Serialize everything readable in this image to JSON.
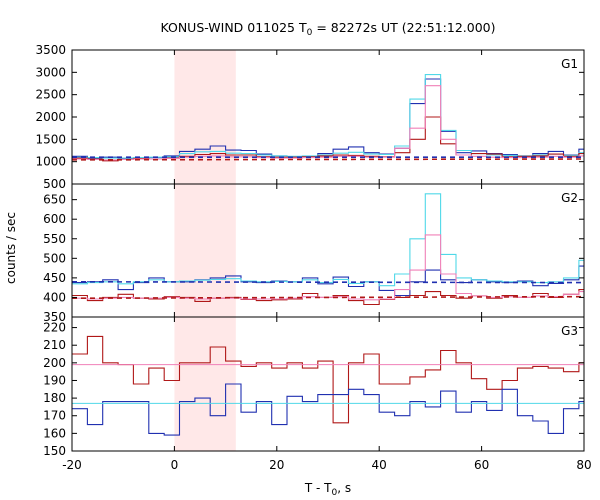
{
  "chart_data": {
    "type": "line",
    "title": "KONUS-WIND 011025 T",
    "title_sub": "0",
    "title_rest": " = 82272s UT (22:51:12.000)",
    "xlabel": "T - T",
    "xlabel_sub": "0",
    "xlabel_rest": ", s",
    "ylabel": "counts / sec",
    "xlim": [
      -20,
      80
    ],
    "x_ticks": [
      "-20",
      "0",
      "20",
      "40",
      "60",
      "80"
    ],
    "x_tick_values": [
      -20,
      0,
      20,
      40,
      60,
      80
    ],
    "shaded_interval": [
      0,
      12
    ],
    "shade_color": "#ffe8e8",
    "colors": {
      "blue": "#2030b0",
      "cyan": "#50d8e8",
      "red": "#b01818",
      "pink": "#f080b8"
    },
    "panels": [
      {
        "label": "G1",
        "ylim": [
          500,
          3500
        ],
        "y_ticks": [
          3500,
          3000,
          2500,
          2000,
          1500,
          1000,
          500
        ],
        "y_tick_labels": [
          "3500",
          "3000",
          "2500",
          "2000",
          "1500",
          "1000",
          "500"
        ],
        "series": [
          {
            "color": "blue",
            "kind": "step",
            "x": [
              -20,
              -17,
              -14,
              -11,
              -8,
              -5,
              -2,
              1,
              4,
              7,
              10,
              13,
              16,
              19,
              22,
              25,
              28,
              31,
              34,
              37,
              40,
              43,
              46,
              49,
              52,
              55,
              58,
              61,
              64,
              67,
              70,
              73,
              76,
              79
            ],
            "values": [
              1120,
              1080,
              1100,
              1060,
              1080,
              1090,
              1130,
              1230,
              1280,
              1350,
              1260,
              1250,
              1170,
              1130,
              1110,
              1120,
              1180,
              1280,
              1330,
              1200,
              1170,
              1300,
              2300,
              2850,
              1680,
              1200,
              1240,
              1180,
              1160,
              1130,
              1180,
              1230,
              1150,
              1280
            ]
          },
          {
            "color": "cyan",
            "kind": "step",
            "x": [
              -20,
              -17,
              -14,
              -11,
              -8,
              -5,
              -2,
              1,
              4,
              7,
              10,
              13,
              16,
              19,
              22,
              25,
              28,
              31,
              34,
              37,
              40,
              43,
              46,
              49,
              52,
              55,
              58,
              61,
              64,
              67,
              70,
              73,
              76,
              79
            ],
            "values": [
              1100,
              1090,
              1080,
              1080,
              1090,
              1100,
              1110,
              1180,
              1220,
              1230,
              1190,
              1180,
              1150,
              1130,
              1120,
              1130,
              1150,
              1190,
              1210,
              1170,
              1160,
              1350,
              2400,
              2950,
              1700,
              1250,
              1180,
              1150,
              1140,
              1130,
              1150,
              1170,
              1140,
              1200
            ]
          },
          {
            "color": "red",
            "kind": "step",
            "x": [
              -20,
              -17,
              -14,
              -11,
              -8,
              -5,
              -2,
              1,
              4,
              7,
              10,
              13,
              16,
              19,
              22,
              25,
              28,
              31,
              34,
              37,
              40,
              43,
              46,
              49,
              52,
              55,
              58,
              61,
              64,
              67,
              70,
              73,
              76,
              79
            ],
            "values": [
              1080,
              1060,
              1020,
              1050,
              1070,
              1060,
              1080,
              1120,
              1160,
              1180,
              1150,
              1150,
              1110,
              1100,
              1100,
              1110,
              1130,
              1150,
              1140,
              1120,
              1110,
              1200,
              1500,
              2000,
              1400,
              1150,
              1180,
              1170,
              1110,
              1120,
              1130,
              1170,
              1120,
              1180
            ]
          },
          {
            "color": "pink",
            "kind": "step",
            "x": [
              -20,
              -17,
              -14,
              -11,
              -8,
              -5,
              -2,
              1,
              4,
              7,
              10,
              13,
              16,
              19,
              22,
              25,
              28,
              31,
              34,
              37,
              40,
              43,
              46,
              49,
              52,
              55,
              58,
              61,
              64,
              67,
              70,
              73,
              76,
              79
            ],
            "values": [
              1060,
              1050,
              1040,
              1050,
              1060,
              1060,
              1070,
              1100,
              1120,
              1130,
              1110,
              1110,
              1090,
              1080,
              1080,
              1090,
              1100,
              1120,
              1120,
              1100,
              1100,
              1300,
              1750,
              2700,
              1500,
              1150,
              1120,
              1100,
              1090,
              1090,
              1100,
              1120,
              1100,
              1130
            ]
          },
          {
            "color": "blue",
            "kind": "dashed",
            "values": [
              1100,
              1100
            ]
          },
          {
            "color": "red",
            "kind": "dashed",
            "values": [
              1040,
              1060
            ]
          }
        ]
      },
      {
        "label": "G2",
        "ylim": [
          350,
          690
        ],
        "y_ticks": [
          650,
          600,
          550,
          500,
          450,
          400,
          350
        ],
        "y_tick_labels": [
          "650",
          "600",
          "550",
          "500",
          "450",
          "400",
          "350"
        ],
        "series": [
          {
            "color": "blue",
            "kind": "step",
            "x": [
              -20,
              -17,
              -14,
              -11,
              -8,
              -5,
              -2,
              1,
              4,
              7,
              10,
              13,
              16,
              19,
              22,
              25,
              28,
              31,
              34,
              37,
              40,
              43,
              46,
              49,
              52,
              55,
              58,
              61,
              64,
              67,
              70,
              73,
              76,
              79
            ],
            "values": [
              438,
              440,
              445,
              420,
              438,
              450,
              440,
              440,
              445,
              450,
              455,
              440,
              438,
              442,
              440,
              450,
              435,
              452,
              428,
              440,
              418,
              405,
              440,
              470,
              445,
              438,
              445,
              440,
              438,
              442,
              430,
              436,
              445,
              480
            ]
          },
          {
            "color": "cyan",
            "kind": "step",
            "x": [
              -20,
              -17,
              -14,
              -11,
              -8,
              -5,
              -2,
              1,
              4,
              7,
              10,
              13,
              16,
              19,
              22,
              25,
              28,
              31,
              34,
              37,
              40,
              43,
              46,
              49,
              52,
              55,
              58,
              61,
              64,
              67,
              70,
              73,
              76,
              79
            ],
            "values": [
              435,
              438,
              440,
              435,
              440,
              445,
              440,
              442,
              444,
              446,
              448,
              442,
              440,
              441,
              440,
              445,
              438,
              446,
              436,
              440,
              430,
              460,
              550,
              665,
              510,
              450,
              445,
              442,
              440,
              440,
              438,
              440,
              450,
              495
            ]
          },
          {
            "color": "red",
            "kind": "step",
            "x": [
              -20,
              -17,
              -14,
              -11,
              -8,
              -5,
              -2,
              1,
              4,
              7,
              10,
              13,
              16,
              19,
              22,
              25,
              28,
              31,
              34,
              37,
              40,
              43,
              46,
              49,
              52,
              55,
              58,
              61,
              64,
              67,
              70,
              73,
              76,
              79
            ],
            "values": [
              405,
              392,
              400,
              408,
              398,
              396,
              402,
              400,
              390,
              398,
              400,
              395,
              392,
              394,
              396,
              410,
              400,
              405,
              392,
              382,
              395,
              400,
              405,
              415,
              405,
              398,
              404,
              398,
              405,
              400,
              410,
              400,
              408,
              420
            ]
          },
          {
            "color": "pink",
            "kind": "step",
            "x": [
              -20,
              -17,
              -14,
              -11,
              -8,
              -5,
              -2,
              1,
              4,
              7,
              10,
              13,
              16,
              19,
              22,
              25,
              28,
              31,
              34,
              37,
              40,
              43,
              46,
              49,
              52,
              55,
              58,
              61,
              64,
              67,
              70,
              73,
              76,
              79
            ],
            "values": [
              398,
              396,
              398,
              400,
              398,
              398,
              400,
              398,
              396,
              398,
              398,
              396,
              396,
              396,
              398,
              402,
              400,
              402,
              396,
              394,
              396,
              420,
              470,
              560,
              460,
              410,
              404,
              400,
              402,
              400,
              404,
              402,
              408,
              415
            ]
          },
          {
            "color": "blue",
            "kind": "dashed",
            "values": [
              440,
              438
            ]
          },
          {
            "color": "red",
            "kind": "dashed",
            "values": [
              398,
              402
            ]
          }
        ]
      },
      {
        "label": "G3",
        "ylim": [
          150,
          226
        ],
        "y_ticks": [
          220,
          210,
          200,
          190,
          180,
          170,
          160,
          150
        ],
        "y_tick_labels": [
          "220",
          "210",
          "200",
          "190",
          "180",
          "170",
          "160",
          "150"
        ],
        "series": [
          {
            "color": "red",
            "kind": "step",
            "x": [
              -20,
              -17,
              -14,
              -11,
              -8,
              -5,
              -2,
              1,
              4,
              7,
              10,
              13,
              16,
              19,
              22,
              25,
              28,
              31,
              34,
              37,
              40,
              43,
              46,
              49,
              52,
              55,
              58,
              61,
              64,
              67,
              70,
              73,
              76,
              79
            ],
            "values": [
              205,
              215,
              200,
              199,
              188,
              197,
              190,
              200,
              200,
              209,
              201,
              198,
              200,
              197,
              200,
              197,
              201,
              166,
              200,
              205,
              188,
              188,
              192,
              196,
              207,
              200,
              191,
              185,
              190,
              197,
              198,
              197,
              195,
              200
            ]
          },
          {
            "color": "blue",
            "kind": "step",
            "x": [
              -20,
              -17,
              -14,
              -11,
              -8,
              -5,
              -2,
              1,
              4,
              7,
              10,
              13,
              16,
              19,
              22,
              25,
              28,
              31,
              34,
              37,
              40,
              43,
              46,
              49,
              52,
              55,
              58,
              61,
              64,
              67,
              70,
              73,
              76,
              79
            ],
            "values": [
              174,
              165,
              178,
              178,
              178,
              160,
              159,
              178,
              180,
              170,
              188,
              172,
              178,
              165,
              181,
              178,
              182,
              182,
              185,
              182,
              172,
              170,
              178,
              175,
              184,
              172,
              178,
              173,
              185,
              170,
              167,
              160,
              174,
              178
            ]
          },
          {
            "color": "pink",
            "kind": "flat",
            "values": [
              199,
              199
            ]
          },
          {
            "color": "cyan",
            "kind": "flat",
            "values": [
              177,
              177
            ]
          }
        ]
      }
    ]
  }
}
